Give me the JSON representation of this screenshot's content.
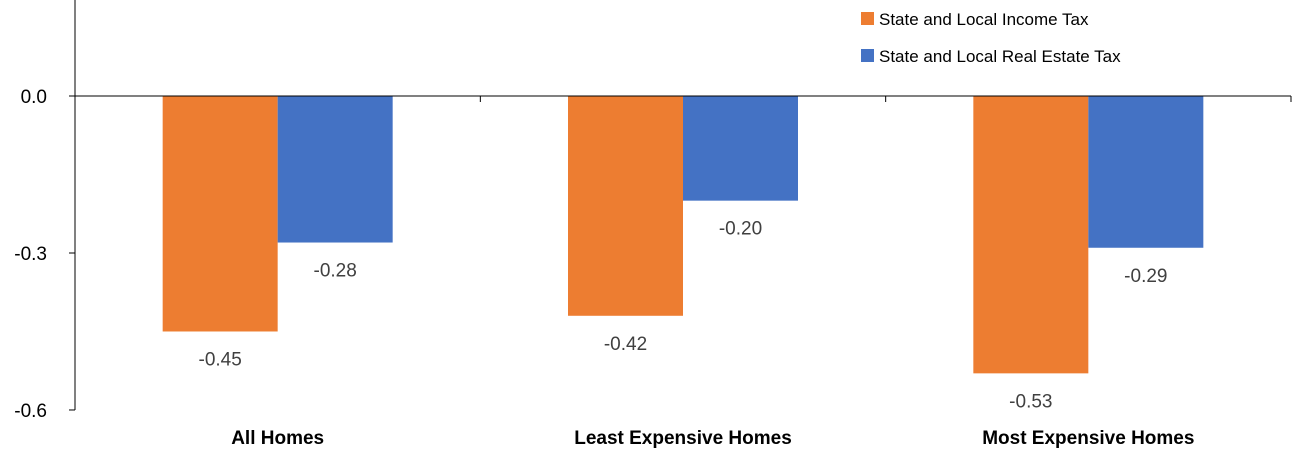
{
  "chart_data": {
    "type": "bar",
    "categories": [
      "All Homes",
      "Least Expensive Homes",
      "Most Expensive Homes"
    ],
    "series": [
      {
        "name": "State and Local Income Tax",
        "color": "#ED7D31",
        "values": [
          -0.45,
          -0.42,
          -0.53
        ]
      },
      {
        "name": "State and Local Real Estate Tax",
        "color": "#4472C4",
        "values": [
          -0.28,
          -0.2,
          -0.29
        ]
      }
    ],
    "data_labels": [
      [
        "-0.45",
        "-0.42",
        "-0.53"
      ],
      [
        "-0.28",
        "-0.20",
        "-0.29"
      ]
    ],
    "yticks": [
      0.0,
      -0.3,
      -0.6
    ],
    "ytick_labels": [
      "0.0",
      "-0.3",
      "-0.6"
    ],
    "ylim": [
      -0.6,
      0.18
    ],
    "title": "",
    "xlabel": "",
    "ylabel": "",
    "legend_position": "top-right",
    "grid": false
  }
}
